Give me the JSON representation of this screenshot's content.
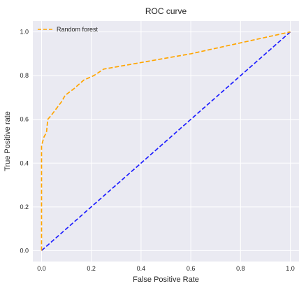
{
  "chart_data": {
    "type": "line",
    "title": "ROC curve",
    "xlabel": "False Positive Rate",
    "ylabel": "True Positive rate",
    "xlim": [
      -0.035,
      1.035
    ],
    "ylim": [
      -0.05,
      1.05
    ],
    "xticks": [
      0.0,
      0.2,
      0.4,
      0.6,
      0.8,
      1.0
    ],
    "yticks": [
      0.0,
      0.2,
      0.4,
      0.6,
      0.8,
      1.0
    ],
    "grid": true,
    "legend_position": "top-left",
    "series": [
      {
        "name": "Random forest",
        "color": "#FFA500",
        "style": "dashed",
        "x": [
          0.0,
          0.0,
          0.01,
          0.02,
          0.025,
          0.04,
          0.06,
          0.08,
          0.095,
          0.13,
          0.17,
          0.21,
          0.25,
          0.4,
          0.6,
          0.8,
          1.0
        ],
        "y": [
          0.0,
          0.48,
          0.52,
          0.54,
          0.6,
          0.62,
          0.65,
          0.68,
          0.71,
          0.74,
          0.78,
          0.8,
          0.83,
          0.86,
          0.9,
          0.95,
          1.0
        ]
      },
      {
        "name": "",
        "color": "#1F1FFF",
        "style": "dashed",
        "x": [
          0.0,
          1.0
        ],
        "y": [
          0.0,
          1.0
        ]
      }
    ]
  }
}
